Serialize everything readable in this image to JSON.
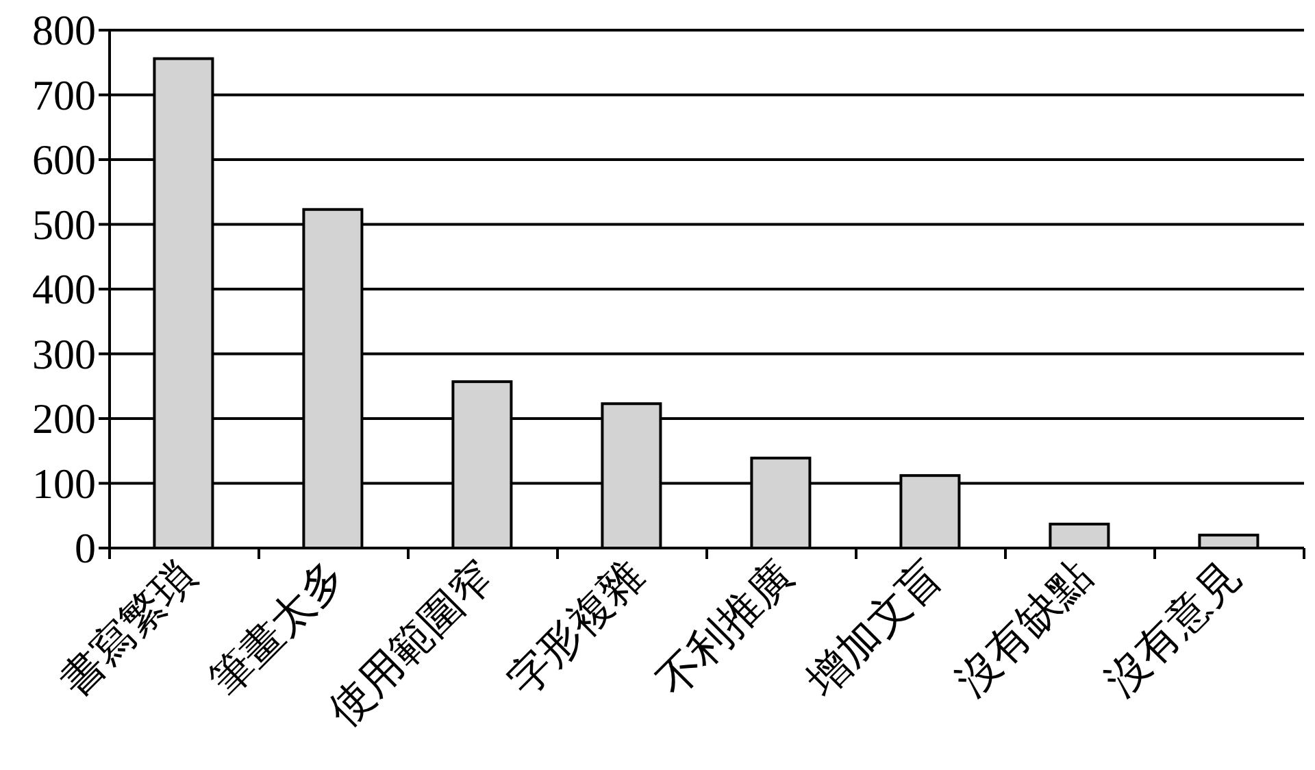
{
  "chart_data": {
    "type": "bar",
    "categories": [
      "書寫繁瑣",
      "筆畫太多",
      "使用範圍窄",
      "字形複雜",
      "不利推廣",
      "增加文盲",
      "沒有缺點",
      "沒有意見"
    ],
    "values": [
      756,
      523,
      257,
      223,
      139,
      112,
      37,
      20
    ],
    "color": "#d3d3d3",
    "ylim": [
      0,
      800
    ],
    "yticks": [
      0,
      100,
      200,
      300,
      400,
      500,
      600,
      700,
      800
    ],
    "grid": "y"
  }
}
